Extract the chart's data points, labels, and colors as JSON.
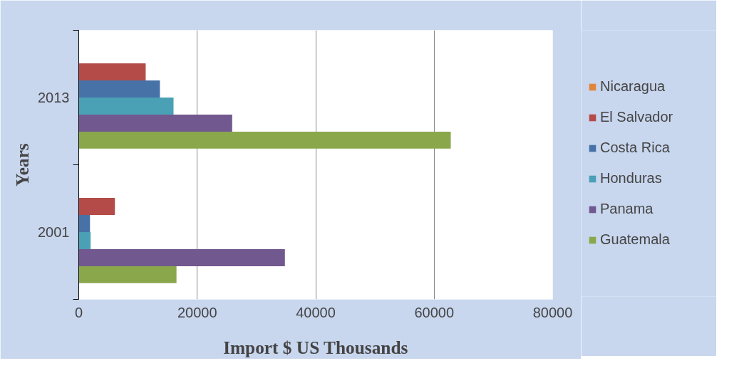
{
  "chart_data": {
    "type": "bar",
    "orientation": "horizontal",
    "xlabel": "Import $ US Thousands",
    "ylabel": "Years",
    "categories": [
      "2013",
      "2001"
    ],
    "series": [
      {
        "name": "Guatemala",
        "color": "#8aa84b",
        "values": [
          62800,
          16500
        ]
      },
      {
        "name": "Panama",
        "color": "#71588f",
        "values": [
          25900,
          34800
        ]
      },
      {
        "name": "Honduras",
        "color": "#4aa0b5",
        "values": [
          16000,
          2000
        ]
      },
      {
        "name": "Costa Rica",
        "color": "#4672a8",
        "values": [
          13700,
          1900
        ]
      },
      {
        "name": "El Salvador",
        "color": "#b44b48",
        "values": [
          11300,
          6100
        ]
      },
      {
        "name": "Nicaragua",
        "color": "#e2853c",
        "values": [
          0,
          0
        ]
      }
    ],
    "xlim": [
      0,
      80000
    ],
    "xticks": [
      0,
      20000,
      40000,
      60000,
      80000
    ],
    "grid": "x",
    "legend": "right"
  }
}
